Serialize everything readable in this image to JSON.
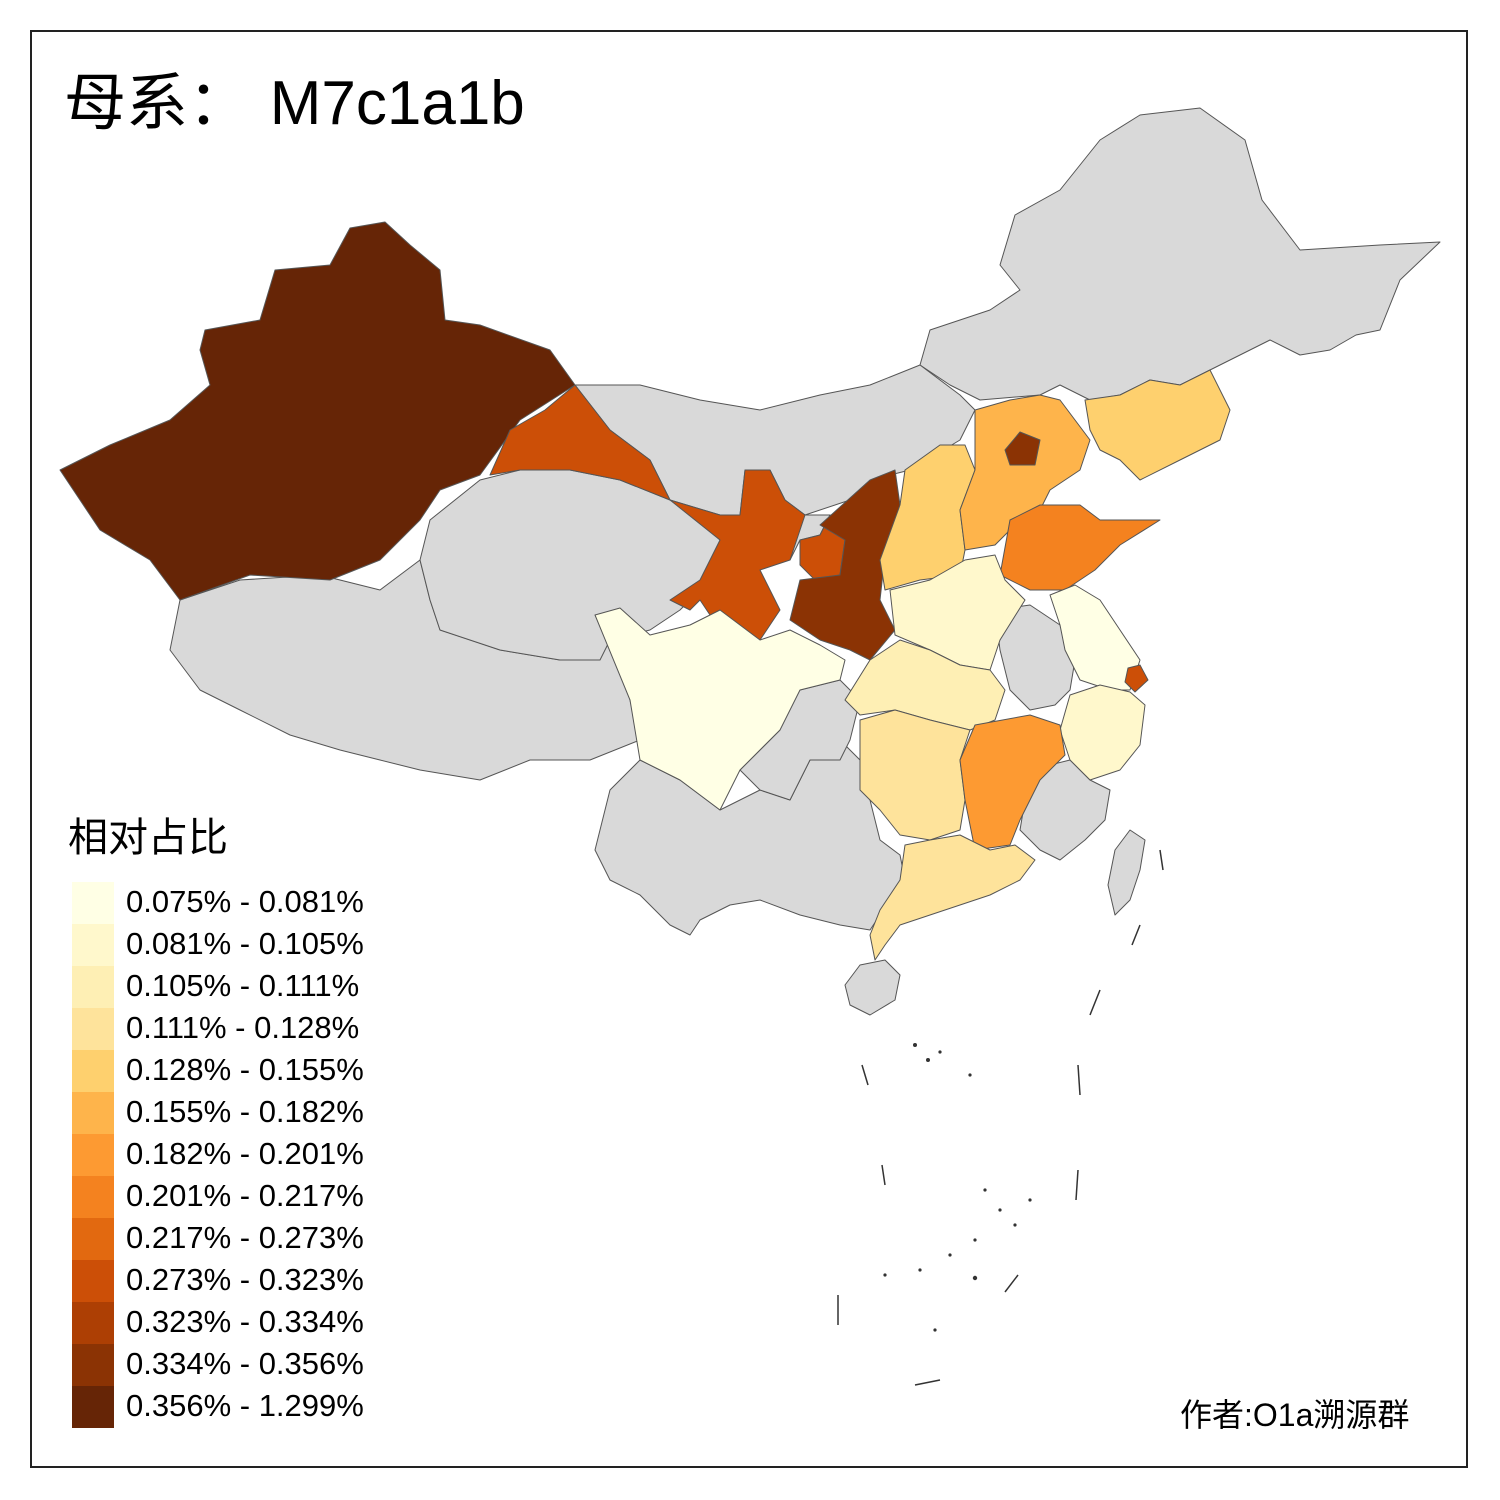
{
  "title": {
    "prefix": "母系：",
    "haplogroup": "M7c1a1b"
  },
  "legend": {
    "title": "相对占比",
    "bins": [
      {
        "label": "0.075% - 0.081%",
        "color": "#ffffe5"
      },
      {
        "label": "0.081% - 0.105%",
        "color": "#fff8cc"
      },
      {
        "label": "0.105% - 0.111%",
        "color": "#feefb4"
      },
      {
        "label": "0.111% - 0.128%",
        "color": "#fee39b"
      },
      {
        "label": "0.128% - 0.155%",
        "color": "#fed06e"
      },
      {
        "label": "0.155% - 0.182%",
        "color": "#feb44b"
      },
      {
        "label": "0.182% - 0.201%",
        "color": "#fd9a32"
      },
      {
        "label": "0.201% - 0.217%",
        "color": "#f4821f"
      },
      {
        "label": "0.217% - 0.273%",
        "color": "#e26910"
      },
      {
        "label": "0.273% - 0.323%",
        "color": "#cc4f07"
      },
      {
        "label": "0.323% - 0.334%",
        "color": "#ad3f04"
      },
      {
        "label": "0.334% - 0.356%",
        "color": "#8b3304"
      },
      {
        "label": "0.356% - 1.299%",
        "color": "#662506"
      }
    ]
  },
  "no_data_color": "#d9d9d9",
  "author": "作者:O1a溯源群"
}
